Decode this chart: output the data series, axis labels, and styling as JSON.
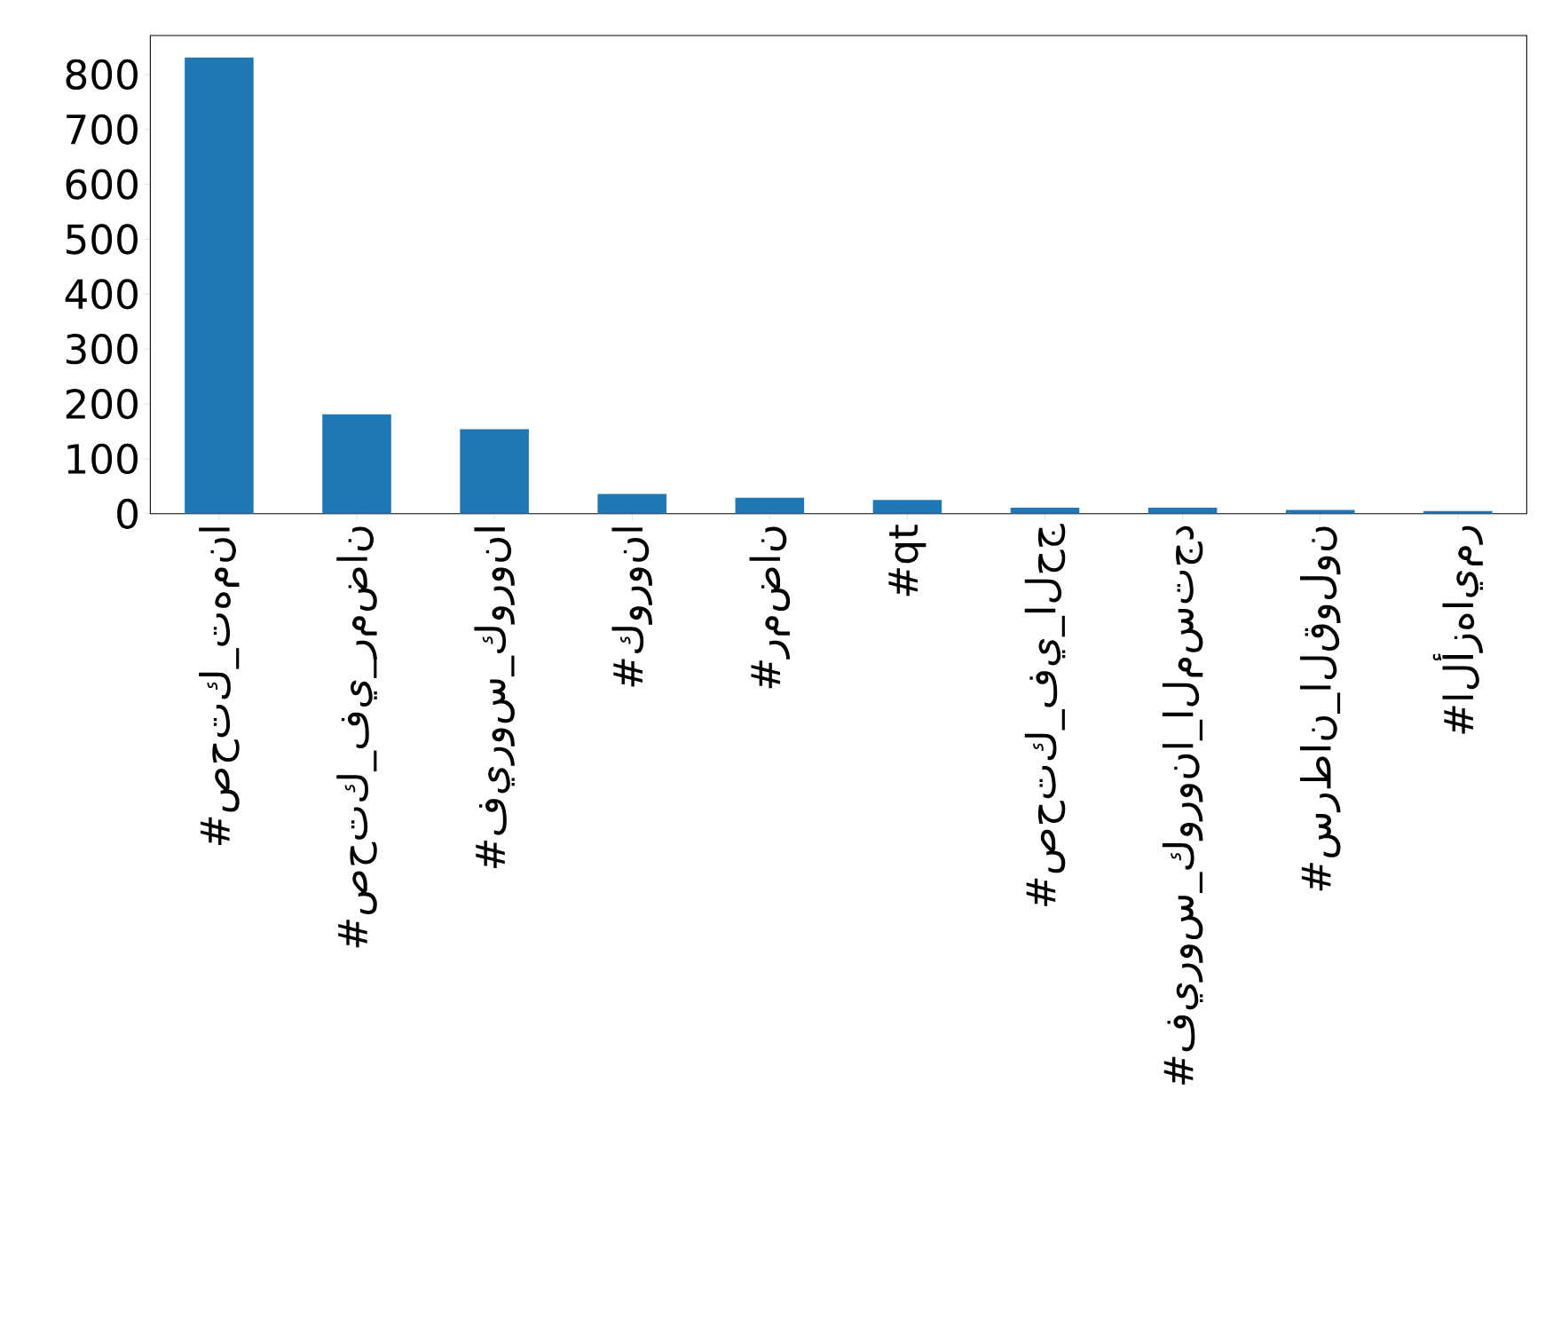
{
  "chart_data": {
    "type": "bar",
    "categories": [
      "#صحتك_تهمنا",
      "#صحتك_في_رمضان",
      "#فيروس_كورونا",
      "#كورونا",
      "#رمضان",
      "#qt",
      "#صحتك_في_الحج",
      "#فيروس_كورونا_المستجد",
      "#سرطان_القولون",
      "#الأزهايمر"
    ],
    "values": [
      831,
      181,
      154,
      36,
      29,
      25,
      11,
      11,
      7,
      5
    ],
    "color": "#1f77b4",
    "ylim": [
      0,
      871
    ],
    "yticks": [
      0,
      100,
      200,
      300,
      400,
      500,
      600,
      700,
      800
    ],
    "grid": false
  }
}
